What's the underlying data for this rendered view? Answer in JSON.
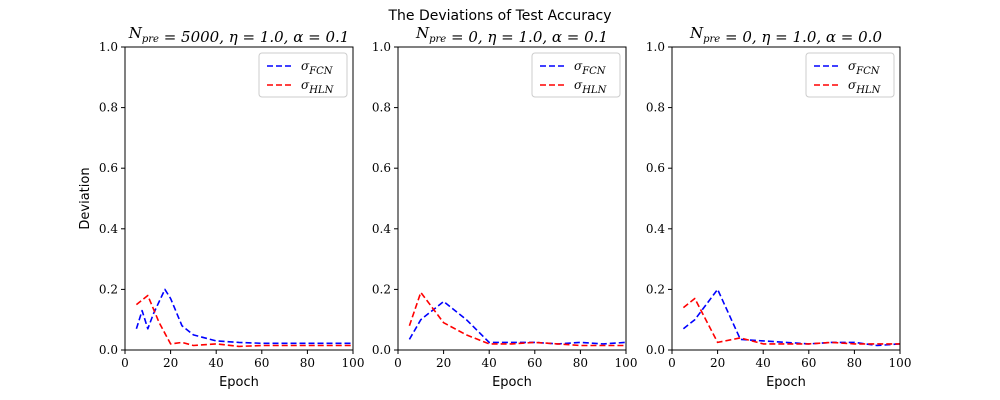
{
  "figure": {
    "suptitle": "The Deviations of Test Accuracy"
  },
  "chart_data": [
    {
      "type": "line",
      "title": "N_pre = 5000, η = 1.0, α = 0.1",
      "xlabel": "Epoch",
      "ylabel": "Deviation",
      "xlim": [
        0,
        100
      ],
      "ylim": [
        0,
        1.0
      ],
      "xticks": [
        "0",
        "20",
        "40",
        "60",
        "80",
        "100"
      ],
      "yticks": [
        "0.0",
        "0.2",
        "0.4",
        "0.6",
        "0.8",
        "1.0"
      ],
      "grid": false,
      "legend_position": "top-right",
      "series": [
        {
          "name": "σ_FCN",
          "color": "#0000ff",
          "style": "dashed",
          "x": [
            5,
            7.5,
            10,
            12.5,
            17.5,
            20,
            25,
            30,
            40,
            50,
            60,
            70,
            80,
            90,
            100
          ],
          "y": [
            0.07,
            0.13,
            0.07,
            0.12,
            0.2,
            0.17,
            0.08,
            0.05,
            0.03,
            0.025,
            0.022,
            0.022,
            0.022,
            0.022,
            0.022
          ]
        },
        {
          "name": "σ_HLN",
          "color": "#ff0000",
          "style": "dashed",
          "x": [
            5,
            10,
            15,
            20,
            25,
            30,
            40,
            50,
            60,
            70,
            80,
            90,
            100
          ],
          "y": [
            0.15,
            0.18,
            0.09,
            0.02,
            0.025,
            0.015,
            0.02,
            0.012,
            0.015,
            0.015,
            0.015,
            0.015,
            0.015
          ]
        }
      ]
    },
    {
      "type": "line",
      "title": "N_pre = 0, η = 1.0, α = 0.1",
      "xlabel": "Epoch",
      "ylabel": "",
      "xlim": [
        0,
        100
      ],
      "ylim": [
        0,
        1.0
      ],
      "xticks": [
        "0",
        "20",
        "40",
        "60",
        "80",
        "100"
      ],
      "yticks": [
        "0.0",
        "0.2",
        "0.4",
        "0.6",
        "0.8",
        "1.0"
      ],
      "grid": false,
      "legend_position": "top-right",
      "series": [
        {
          "name": "σ_FCN",
          "color": "#0000ff",
          "style": "dashed",
          "x": [
            5,
            10,
            20,
            30,
            40,
            50,
            60,
            70,
            80,
            90,
            100
          ],
          "y": [
            0.035,
            0.1,
            0.16,
            0.1,
            0.025,
            0.025,
            0.025,
            0.02,
            0.025,
            0.02,
            0.025
          ]
        },
        {
          "name": "σ_HLN",
          "color": "#ff0000",
          "style": "dashed",
          "x": [
            5,
            10,
            20,
            30,
            40,
            50,
            60,
            70,
            80,
            90,
            100
          ],
          "y": [
            0.08,
            0.19,
            0.09,
            0.05,
            0.02,
            0.02,
            0.025,
            0.02,
            0.015,
            0.015,
            0.015
          ]
        }
      ]
    },
    {
      "type": "line",
      "title": "N_pre = 0, η = 1.0, α = 0.0",
      "xlabel": "Epoch",
      "ylabel": "",
      "xlim": [
        0,
        100
      ],
      "ylim": [
        0,
        1.0
      ],
      "xticks": [
        "0",
        "20",
        "40",
        "60",
        "80",
        "100"
      ],
      "yticks": [
        "0.0",
        "0.2",
        "0.4",
        "0.6",
        "0.8",
        "1.0"
      ],
      "grid": false,
      "legend_position": "top-right",
      "series": [
        {
          "name": "σ_FCN",
          "color": "#0000ff",
          "style": "dashed",
          "x": [
            5,
            10,
            20,
            30,
            40,
            50,
            60,
            70,
            80,
            90,
            100
          ],
          "y": [
            0.07,
            0.1,
            0.2,
            0.035,
            0.03,
            0.025,
            0.02,
            0.025,
            0.025,
            0.015,
            0.02
          ]
        },
        {
          "name": "σ_HLN",
          "color": "#ff0000",
          "style": "dashed",
          "x": [
            5,
            10,
            20,
            30,
            40,
            50,
            60,
            70,
            80,
            90,
            100
          ],
          "y": [
            0.14,
            0.17,
            0.025,
            0.04,
            0.02,
            0.02,
            0.02,
            0.025,
            0.02,
            0.02,
            0.02
          ]
        }
      ]
    }
  ]
}
